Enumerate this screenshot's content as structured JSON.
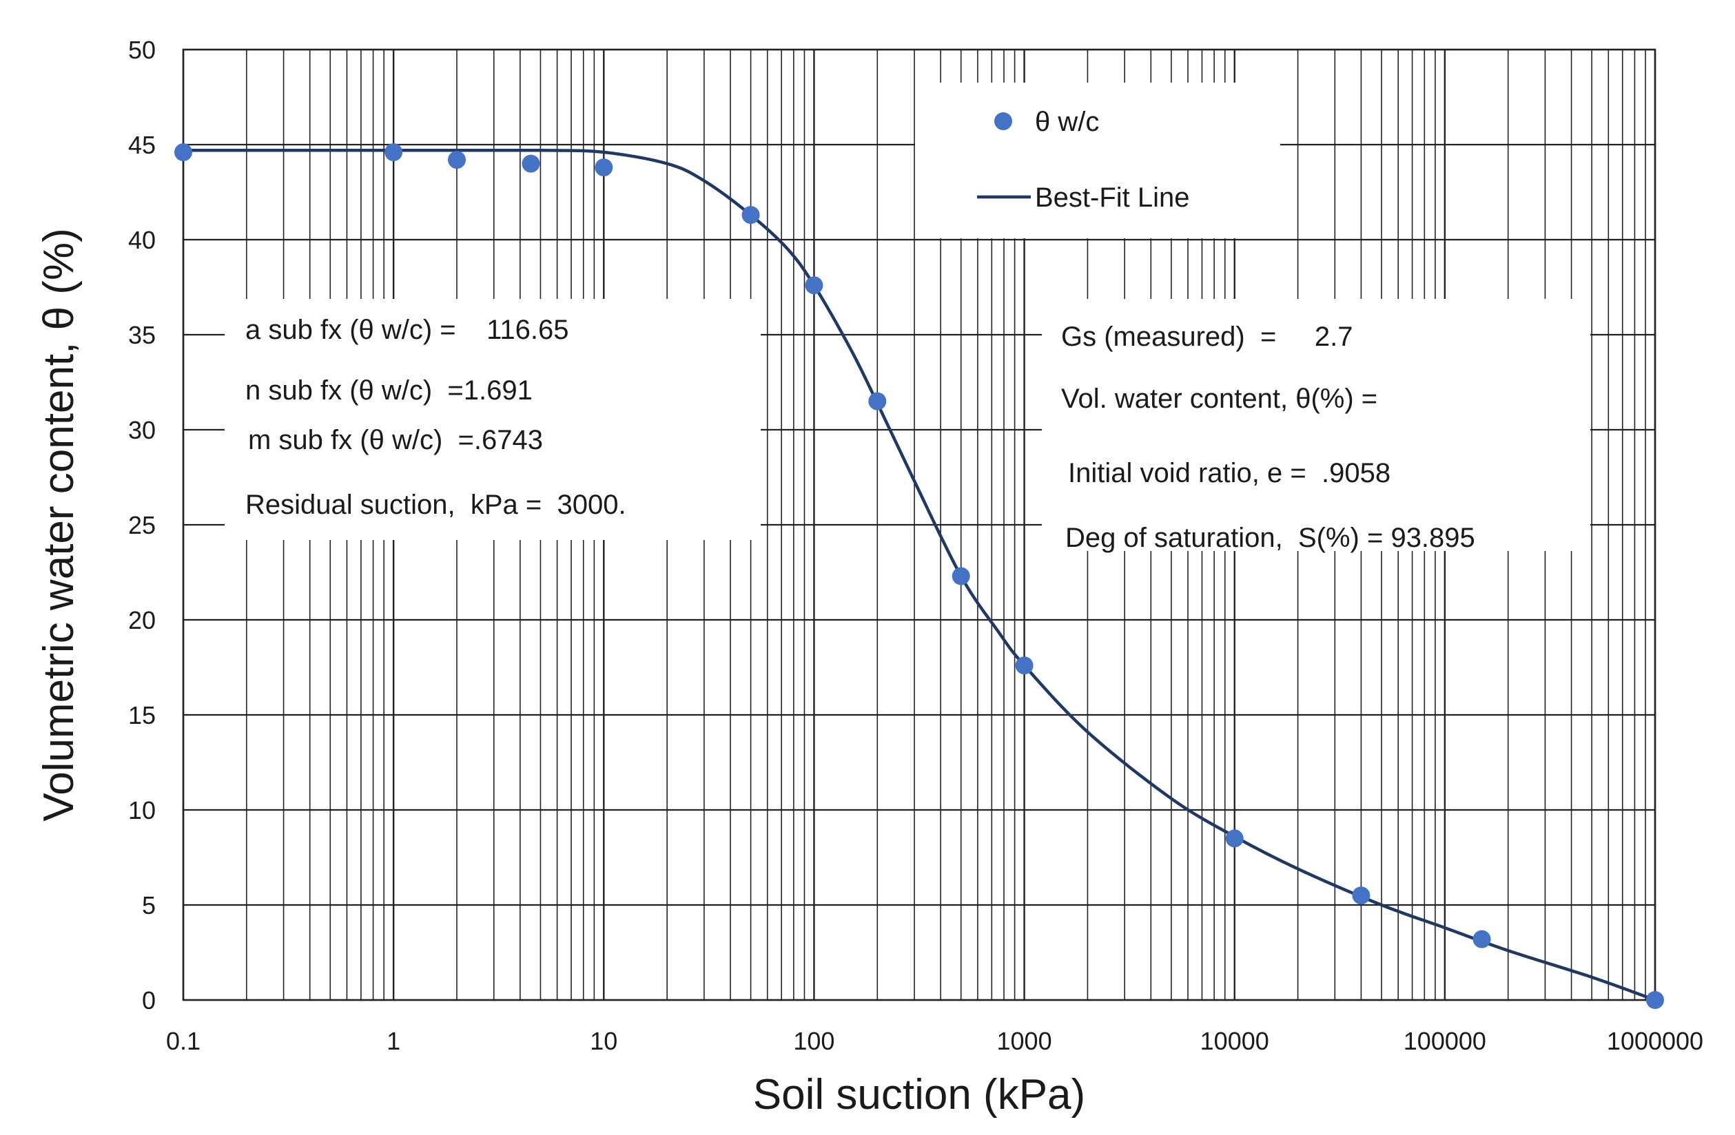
{
  "chart_data": {
    "type": "scatter",
    "title": "",
    "xlabel": "Soil suction (kPa)",
    "ylabel": "Volumetric water content, θ (%)",
    "xscale": "log",
    "xlim": [
      0.1,
      1000000
    ],
    "ylim": [
      0,
      50
    ],
    "grid": true,
    "x_ticks": [
      "0.1",
      "1",
      "10",
      "100",
      "1000",
      "10000",
      "100000",
      "1000000"
    ],
    "y_ticks": [
      "0",
      "5",
      "10",
      "15",
      "20",
      "25",
      "30",
      "35",
      "40",
      "45",
      "50"
    ],
    "series": [
      {
        "name": "θ w/c",
        "kind": "points",
        "color": "#4472C4",
        "x": [
          0.1,
          1,
          2,
          4.5,
          10,
          50,
          100,
          200,
          500,
          1000,
          10000,
          40000,
          150000,
          1000000
        ],
        "y": [
          44.6,
          44.6,
          44.2,
          44.0,
          43.8,
          41.3,
          37.6,
          31.5,
          22.3,
          17.6,
          8.5,
          5.5,
          3.2,
          0.0
        ]
      },
      {
        "name": "Best-Fit Line",
        "kind": "line",
        "color": "#203864",
        "x": [
          0.1,
          1,
          5,
          10,
          20,
          30,
          50,
          75,
          100,
          150,
          200,
          300,
          500,
          750,
          1000,
          2000,
          5000,
          10000,
          20000,
          50000,
          100000,
          200000,
          500000,
          1000000
        ],
        "y": [
          44.7,
          44.7,
          44.7,
          44.6,
          44.0,
          43.1,
          41.3,
          39.5,
          37.6,
          34.2,
          31.4,
          27.3,
          22.3,
          19.4,
          17.6,
          14.1,
          10.6,
          8.6,
          6.9,
          5.0,
          3.8,
          2.6,
          1.2,
          0.0
        ]
      }
    ],
    "legend": {
      "position": "top-right",
      "entries": [
        {
          "label": "θ w/c",
          "marker": "dot"
        },
        {
          "label": "Best-Fit Line",
          "marker": "line"
        }
      ]
    },
    "annotations": {
      "left_box": [
        "a sub fx (θ w/c) =    116.65",
        "n sub fx (θ w/c)  =1.691",
        "m sub fx (θ w/c)  =.6743",
        "Residual suction,  kPa =  3000."
      ],
      "right_box": [
        "Gs (measured)  =     2.7",
        "Vol. water content, θ(%) =",
        "Initial void ratio, e =  .9058",
        "Deg of saturation,  S(%) = 93.895"
      ]
    }
  }
}
